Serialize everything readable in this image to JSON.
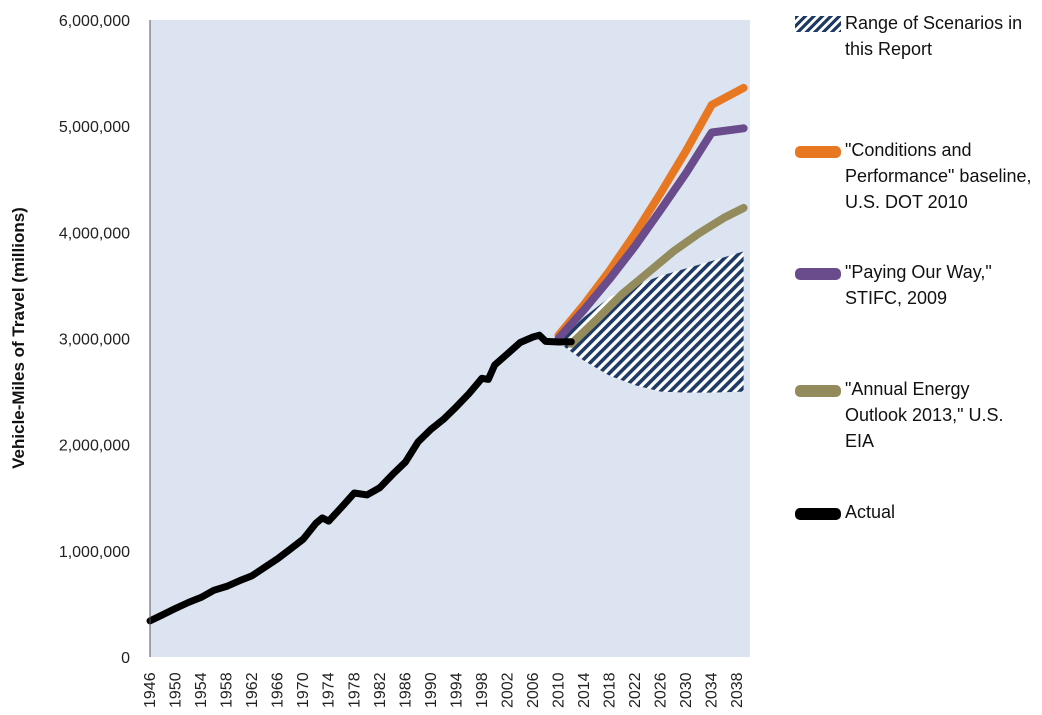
{
  "chart_data": {
    "type": "line",
    "title": "",
    "xlabel": "",
    "ylabel": "Vehicle-Miles of Travel (millions)",
    "ylim": [
      0,
      6000000
    ],
    "xlim": [
      1946,
      2040
    ],
    "y_ticks": [
      "0",
      "1,000,000",
      "2,000,000",
      "3,000,000",
      "4,000,000",
      "5,000,000",
      "6,000,000"
    ],
    "x_ticks": [
      "1946",
      "1950",
      "1954",
      "1958",
      "1962",
      "1966",
      "1970",
      "1974",
      "1978",
      "1982",
      "1986",
      "1990",
      "1994",
      "1998",
      "2002",
      "2006",
      "2010",
      "2014",
      "2018",
      "2022",
      "2026",
      "2030",
      "2034",
      "2038"
    ],
    "grid": false,
    "legend_position": "right",
    "plot_background": "#dce4f1",
    "series": [
      {
        "name": "Actual",
        "color": "#000000",
        "x": [
          1946,
          1948,
          1950,
          1952,
          1954,
          1956,
          1958,
          1960,
          1962,
          1964,
          1966,
          1968,
          1970,
          1972,
          1973,
          1974,
          1976,
          1978,
          1980,
          1982,
          1984,
          1986,
          1988,
          1990,
          1992,
          1994,
          1996,
          1998,
          1999,
          2000,
          2002,
          2004,
          2006,
          2007,
          2008,
          2010,
          2012
        ],
        "y": [
          340000,
          398000,
          458000,
          513000,
          561000,
          628000,
          665000,
          718000,
          766000,
          846000,
          926000,
          1016000,
          1110000,
          1260000,
          1310000,
          1280000,
          1410000,
          1545000,
          1527000,
          1595000,
          1720000,
          1835000,
          2026000,
          2144000,
          2240000,
          2358000,
          2482000,
          2625000,
          2615000,
          2750000,
          2855000,
          2962000,
          3014000,
          3031000,
          2973000,
          2967000,
          2969000
        ]
      },
      {
        "name": "\"Conditions and Performance\" baseline, U.S. DOT 2010",
        "color": "#e87722",
        "x": [
          2010,
          2014,
          2018,
          2022,
          2026,
          2030,
          2034,
          2039
        ],
        "y": [
          3030000,
          3320000,
          3640000,
          3990000,
          4370000,
          4770000,
          5200000,
          5360000
        ]
      },
      {
        "name": "\"Paying Our Way,\" STIFC, 2009",
        "color": "#6a4c8c",
        "x": [
          2010,
          2014,
          2018,
          2022,
          2026,
          2030,
          2034,
          2039
        ],
        "y": [
          3000000,
          3270000,
          3560000,
          3870000,
          4210000,
          4560000,
          4940000,
          4980000
        ]
      },
      {
        "name": "\"Annual Energy Outlook 2013,\" U.S. EIA",
        "color": "#938b5c",
        "x": [
          2012,
          2016,
          2020,
          2024,
          2028,
          2032,
          2036,
          2039
        ],
        "y": [
          2950000,
          3180000,
          3420000,
          3620000,
          3820000,
          3990000,
          4140000,
          4230000
        ]
      }
    ],
    "range": {
      "name": "Range of Scenarios in this Report",
      "color": "#1f3a64",
      "x": [
        2010,
        2014,
        2018,
        2022,
        2026,
        2030,
        2034,
        2039
      ],
      "upper": [
        2990000,
        3200000,
        3390000,
        3500000,
        3590000,
        3660000,
        3730000,
        3820000
      ],
      "lower": [
        2960000,
        2790000,
        2650000,
        2560000,
        2500000,
        2490000,
        2490000,
        2500000
      ]
    }
  },
  "legend": [
    {
      "label": "Range of Scenarios in this Report",
      "type": "hatch"
    },
    {
      "label": "\"Conditions and Performance\" baseline, U.S. DOT 2010",
      "color": "#e87722"
    },
    {
      "label": "\"Paying Our Way,\" STIFC, 2009",
      "color": "#6a4c8c"
    },
    {
      "label": "\"Annual Energy Outlook 2013,\" U.S. EIA",
      "color": "#938b5c"
    },
    {
      "label": "Actual",
      "color": "#000000"
    }
  ]
}
